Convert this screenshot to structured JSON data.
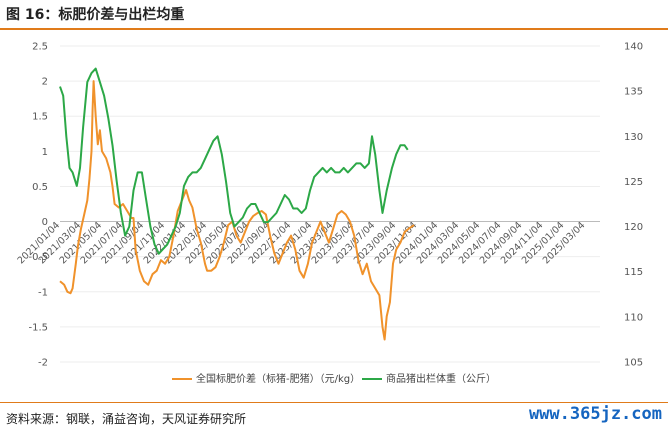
{
  "header": {
    "title": "图 16：标肥价差与出栏均重"
  },
  "footer": {
    "source": "资料来源：钢联，涌益咨询，天风证券研究所",
    "watermark": "www.365jz.com"
  },
  "chart_data": {
    "type": "line",
    "y_left": {
      "ticks": [
        "2.5",
        "2",
        "1.5",
        "1",
        "0.5",
        "0",
        "-0.5",
        "-1",
        "-1.5",
        "-2"
      ],
      "lim": [
        -2,
        2.5
      ]
    },
    "y_right": {
      "ticks": [
        "140",
        "135",
        "130",
        "125",
        "120",
        "115",
        "110",
        "105"
      ],
      "lim": [
        105,
        140
      ]
    },
    "x_ticks": [
      "2021/01/04",
      "2021/03/04",
      "2021/05/04",
      "2021/07/04",
      "2021/09/04",
      "2021/11/04",
      "2022/01/04",
      "2022/03/04",
      "2022/05/04",
      "2022/07/04",
      "2022/09/04",
      "2022/11/04",
      "2023/01/04",
      "2023/03/04",
      "2023/05/04",
      "2023/07/04",
      "2023/09/04",
      "2023/11/04",
      "2024/01/04",
      "2024/03/04",
      "2024/05/04",
      "2024/07/04",
      "2024/09/04",
      "2024/11/04",
      "2025/01/04",
      "2025/03/04"
    ],
    "series": [
      {
        "name": "全国标肥价差（标猪-肥猪）（元/kg）",
        "axis": "left",
        "color": "#f0922b",
        "points": [
          [
            0,
            -0.85
          ],
          [
            0.2,
            -0.9
          ],
          [
            0.35,
            -1.0
          ],
          [
            0.5,
            -1.02
          ],
          [
            0.6,
            -0.95
          ],
          [
            0.75,
            -0.6
          ],
          [
            0.85,
            -0.35
          ],
          [
            1.0,
            -0.1
          ],
          [
            1.15,
            0.1
          ],
          [
            1.3,
            0.3
          ],
          [
            1.4,
            0.6
          ],
          [
            1.5,
            1.0
          ],
          [
            1.55,
            1.6
          ],
          [
            1.6,
            2.0
          ],
          [
            1.7,
            1.5
          ],
          [
            1.8,
            1.1
          ],
          [
            1.9,
            1.3
          ],
          [
            2.0,
            1.0
          ],
          [
            2.2,
            0.9
          ],
          [
            2.4,
            0.7
          ],
          [
            2.5,
            0.5
          ],
          [
            2.6,
            0.25
          ],
          [
            2.8,
            0.2
          ],
          [
            3.0,
            0.25
          ],
          [
            3.2,
            0.15
          ],
          [
            3.4,
            0.05
          ],
          [
            3.5,
            0.05
          ],
          [
            3.6,
            -0.4
          ],
          [
            3.8,
            -0.7
          ],
          [
            4.0,
            -0.85
          ],
          [
            4.2,
            -0.9
          ],
          [
            4.4,
            -0.75
          ],
          [
            4.6,
            -0.7
          ],
          [
            4.8,
            -0.55
          ],
          [
            5.0,
            -0.6
          ],
          [
            5.2,
            -0.5
          ],
          [
            5.4,
            -0.2
          ],
          [
            5.6,
            0.15
          ],
          [
            5.8,
            0.3
          ],
          [
            6.0,
            0.45
          ],
          [
            6.15,
            0.3
          ],
          [
            6.3,
            0.2
          ],
          [
            6.5,
            -0.1
          ],
          [
            6.7,
            -0.3
          ],
          [
            6.9,
            -0.6
          ],
          [
            7.0,
            -0.7
          ],
          [
            7.2,
            -0.7
          ],
          [
            7.4,
            -0.65
          ],
          [
            7.6,
            -0.5
          ],
          [
            7.8,
            -0.3
          ],
          [
            8.0,
            -0.05
          ],
          [
            8.2,
            0.0
          ],
          [
            8.4,
            -0.2
          ],
          [
            8.6,
            -0.3
          ],
          [
            8.8,
            -0.15
          ],
          [
            9.0,
            0.0
          ],
          [
            9.2,
            0.08
          ],
          [
            9.4,
            0.12
          ],
          [
            9.6,
            0.15
          ],
          [
            9.8,
            0.1
          ],
          [
            10.0,
            -0.2
          ],
          [
            10.2,
            -0.45
          ],
          [
            10.4,
            -0.6
          ],
          [
            10.6,
            -0.45
          ],
          [
            10.8,
            -0.3
          ],
          [
            11.0,
            -0.2
          ],
          [
            11.2,
            -0.4
          ],
          [
            11.4,
            -0.7
          ],
          [
            11.6,
            -0.8
          ],
          [
            11.8,
            -0.6
          ],
          [
            12.0,
            -0.3
          ],
          [
            12.2,
            -0.15
          ],
          [
            12.4,
            0.0
          ],
          [
            12.6,
            -0.15
          ],
          [
            12.8,
            -0.3
          ],
          [
            13.0,
            -0.1
          ],
          [
            13.2,
            0.1
          ],
          [
            13.4,
            0.15
          ],
          [
            13.6,
            0.1
          ],
          [
            13.8,
            0.0
          ],
          [
            14.0,
            -0.2
          ],
          [
            14.2,
            -0.55
          ],
          [
            14.4,
            -0.75
          ],
          [
            14.6,
            -0.6
          ],
          [
            14.8,
            -0.85
          ],
          [
            15.0,
            -0.95
          ],
          [
            15.2,
            -1.05
          ],
          [
            15.35,
            -1.5
          ],
          [
            15.45,
            -1.68
          ],
          [
            15.55,
            -1.35
          ],
          [
            15.7,
            -1.15
          ],
          [
            15.85,
            -0.6
          ],
          [
            16.0,
            -0.4
          ],
          [
            16.2,
            -0.3
          ],
          [
            16.4,
            -0.15
          ],
          [
            16.6,
            -0.1
          ],
          [
            16.85,
            -0.05
          ]
        ]
      },
      {
        "name": "商品猪出栏体重（公斤）",
        "axis": "right",
        "color": "#2ca847",
        "points": [
          [
            0,
            135.5
          ],
          [
            0.15,
            134.5
          ],
          [
            0.3,
            130
          ],
          [
            0.45,
            126.5
          ],
          [
            0.6,
            126
          ],
          [
            0.8,
            124.5
          ],
          [
            0.95,
            126.5
          ],
          [
            1.1,
            131
          ],
          [
            1.3,
            136
          ],
          [
            1.5,
            137
          ],
          [
            1.7,
            137.5
          ],
          [
            1.9,
            136
          ],
          [
            2.1,
            134.5
          ],
          [
            2.3,
            132
          ],
          [
            2.5,
            129
          ],
          [
            2.7,
            125
          ],
          [
            2.9,
            121.5
          ],
          [
            3.1,
            119
          ],
          [
            3.3,
            120
          ],
          [
            3.5,
            124
          ],
          [
            3.7,
            126
          ],
          [
            3.9,
            126
          ],
          [
            4.1,
            123
          ],
          [
            4.3,
            120
          ],
          [
            4.5,
            118
          ],
          [
            4.7,
            117
          ],
          [
            4.9,
            117.5
          ],
          [
            5.1,
            118
          ],
          [
            5.3,
            119
          ],
          [
            5.5,
            120
          ],
          [
            5.7,
            121.5
          ],
          [
            5.9,
            124.5
          ],
          [
            6.1,
            125.5
          ],
          [
            6.3,
            126
          ],
          [
            6.5,
            126
          ],
          [
            6.7,
            126.5
          ],
          [
            6.9,
            127.5
          ],
          [
            7.1,
            128.5
          ],
          [
            7.3,
            129.5
          ],
          [
            7.5,
            130
          ],
          [
            7.7,
            128
          ],
          [
            7.9,
            125
          ],
          [
            8.1,
            121.5
          ],
          [
            8.3,
            120
          ],
          [
            8.5,
            120.5
          ],
          [
            8.7,
            121
          ],
          [
            8.9,
            122
          ],
          [
            9.1,
            122.5
          ],
          [
            9.3,
            122.5
          ],
          [
            9.5,
            121.5
          ],
          [
            9.7,
            120.5
          ],
          [
            9.9,
            120.5
          ],
          [
            10.1,
            121
          ],
          [
            10.3,
            121.5
          ],
          [
            10.5,
            122.5
          ],
          [
            10.7,
            123.5
          ],
          [
            10.9,
            123
          ],
          [
            11.1,
            122
          ],
          [
            11.3,
            122
          ],
          [
            11.5,
            121.5
          ],
          [
            11.7,
            122
          ],
          [
            11.9,
            124
          ],
          [
            12.1,
            125.5
          ],
          [
            12.3,
            126
          ],
          [
            12.5,
            126.5
          ],
          [
            12.7,
            126
          ],
          [
            12.9,
            126.5
          ],
          [
            13.1,
            126
          ],
          [
            13.3,
            126
          ],
          [
            13.5,
            126.5
          ],
          [
            13.7,
            126
          ],
          [
            13.9,
            126.5
          ],
          [
            14.1,
            127
          ],
          [
            14.3,
            127
          ],
          [
            14.5,
            126.5
          ],
          [
            14.7,
            127
          ],
          [
            14.85,
            130
          ],
          [
            15.0,
            128
          ],
          [
            15.2,
            124
          ],
          [
            15.35,
            121.5
          ],
          [
            15.55,
            124
          ],
          [
            15.8,
            126.5
          ],
          [
            16.0,
            128
          ],
          [
            16.2,
            129
          ],
          [
            16.4,
            129
          ],
          [
            16.55,
            128.5
          ]
        ]
      }
    ],
    "grid": true,
    "legend": "bottom"
  }
}
